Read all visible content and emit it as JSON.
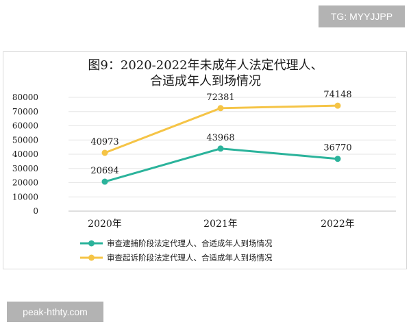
{
  "watermarks": {
    "top_right": "TG: MYYJJPP",
    "bottom_left": "peak-hthty.com"
  },
  "chart_data": {
    "type": "line",
    "title_line1": "图9：2020-2022年未成年人法定代理人、",
    "title_line2": "合适成年人到场情况",
    "categories": [
      "2020年",
      "2021年",
      "2022年"
    ],
    "ylim": [
      0,
      80000
    ],
    "yticks": [
      0,
      10000,
      20000,
      30000,
      40000,
      50000,
      60000,
      70000,
      80000
    ],
    "grid": true,
    "legend_position": "bottom",
    "series": [
      {
        "name": "审查逮捕阶段法定代理人、合适成年人到场情况",
        "values": [
          20694,
          43968,
          36770
        ],
        "color": "#2bb39b"
      },
      {
        "name": "审查起诉阶段法定代理人、合适成年人到场情况",
        "values": [
          40973,
          72381,
          74148
        ],
        "color": "#f5c446"
      }
    ]
  }
}
